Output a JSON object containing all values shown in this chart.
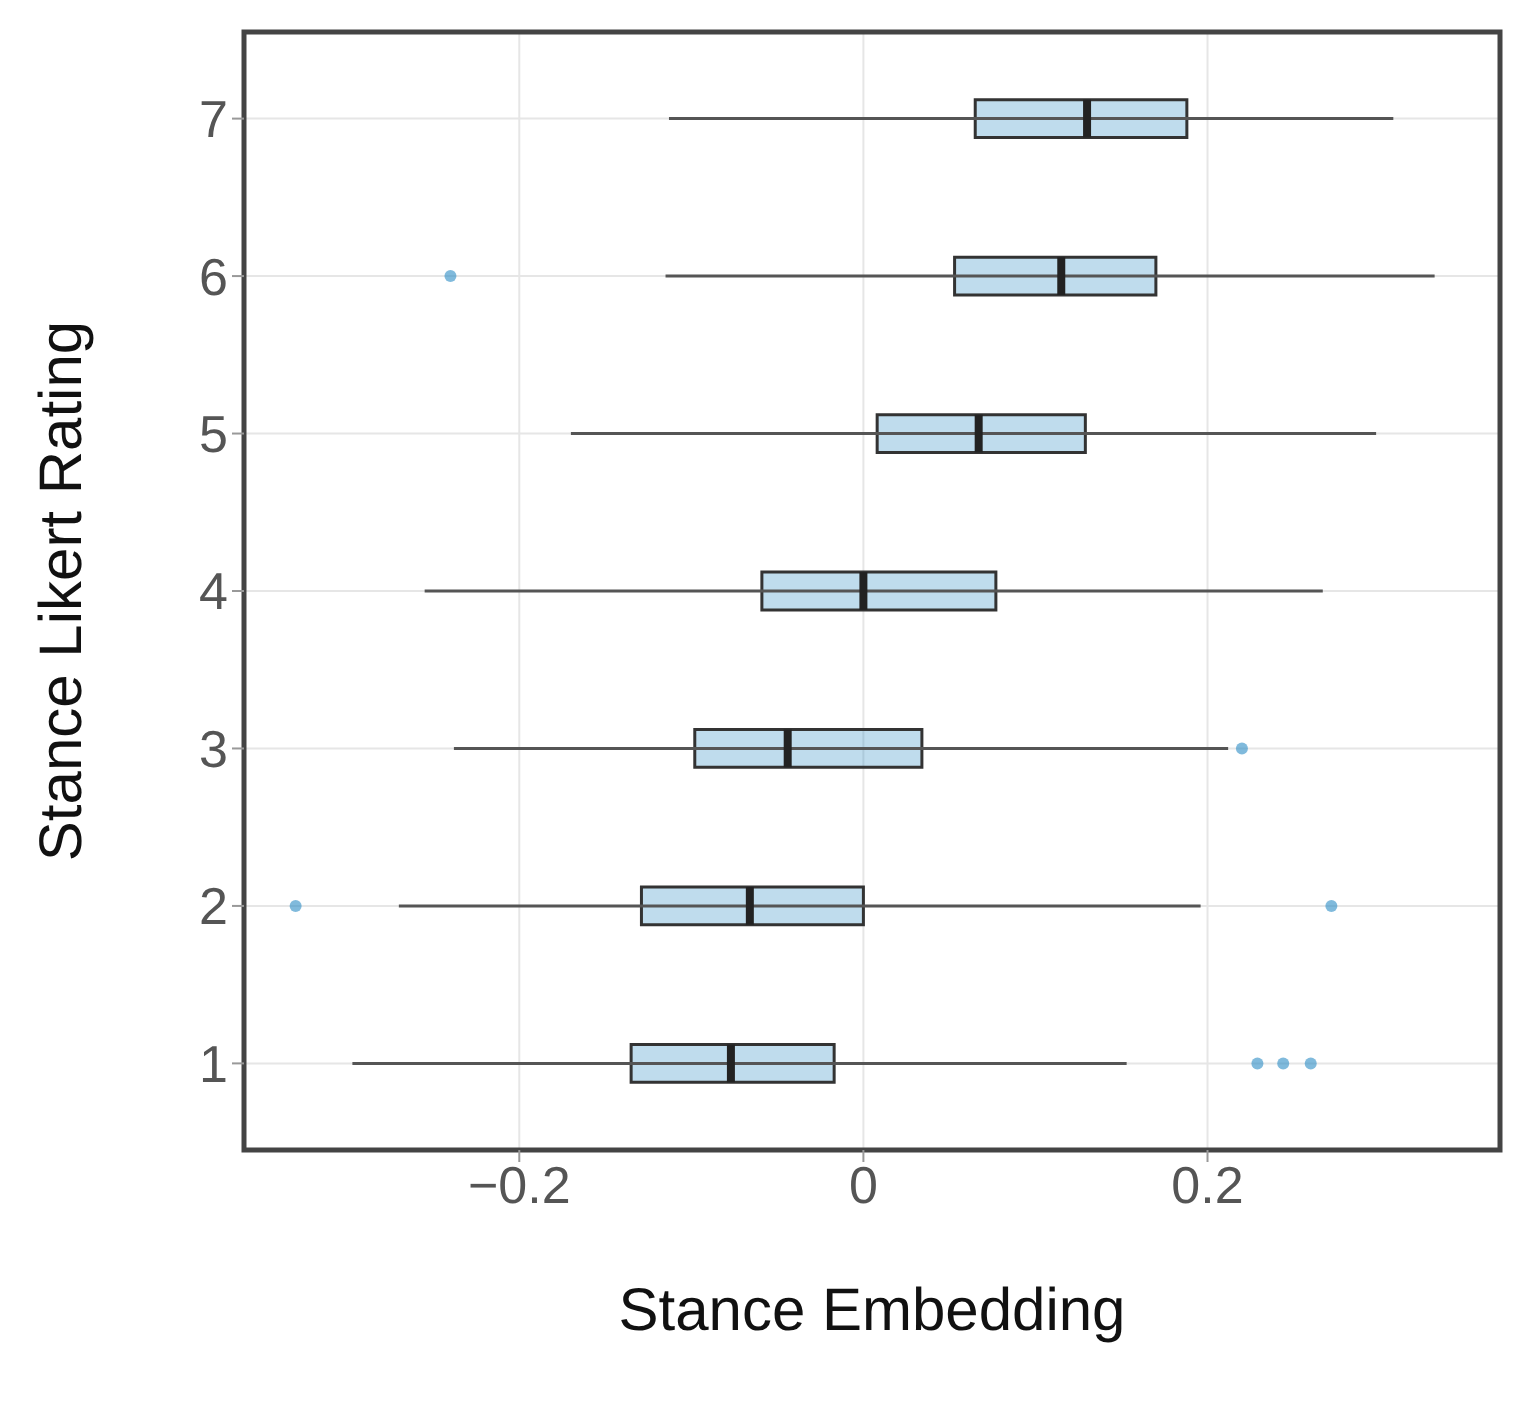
{
  "chart_data": {
    "type": "box",
    "orientation": "horizontal",
    "xlabel": "Stance Embedding",
    "ylabel": "Stance Likert Rating",
    "categories": [
      "7",
      "6",
      "5",
      "4",
      "3",
      "2",
      "1"
    ],
    "color": "#2b8cc4",
    "boxes": [
      {
        "low": -0.113,
        "q1": 0.065,
        "median": 0.13,
        "q3": 0.188,
        "high": 0.308
      },
      {
        "low": -0.115,
        "q1": 0.053,
        "median": 0.115,
        "q3": 0.17,
        "high": 0.332,
        "outliers": [
          -0.24
        ]
      },
      {
        "low": -0.17,
        "q1": 0.008,
        "median": 0.067,
        "q3": 0.129,
        "high": 0.298
      },
      {
        "low": -0.255,
        "q1": -0.059,
        "median": 0,
        "q3": 0.077,
        "high": 0.267
      },
      {
        "low": -0.238,
        "q1": -0.098,
        "median": -0.044,
        "q3": 0.034,
        "high": 0.212,
        "outliers": [
          0.22
        ]
      },
      {
        "low": -0.27,
        "q1": -0.129,
        "median": -0.066,
        "q3": 0,
        "high": 0.196,
        "outliers": [
          -0.33,
          0.272
        ]
      },
      {
        "low": -0.297,
        "q1": -0.135,
        "median": -0.077,
        "q3": -0.017,
        "high": 0.153,
        "outliers": [
          0.229,
          0.244,
          0.26
        ]
      }
    ],
    "xlim": [
      -0.36,
      0.37
    ],
    "xticks": [
      {
        "value": -0.2,
        "label": "−0.2"
      },
      0,
      0.2
    ],
    "grid": true
  }
}
